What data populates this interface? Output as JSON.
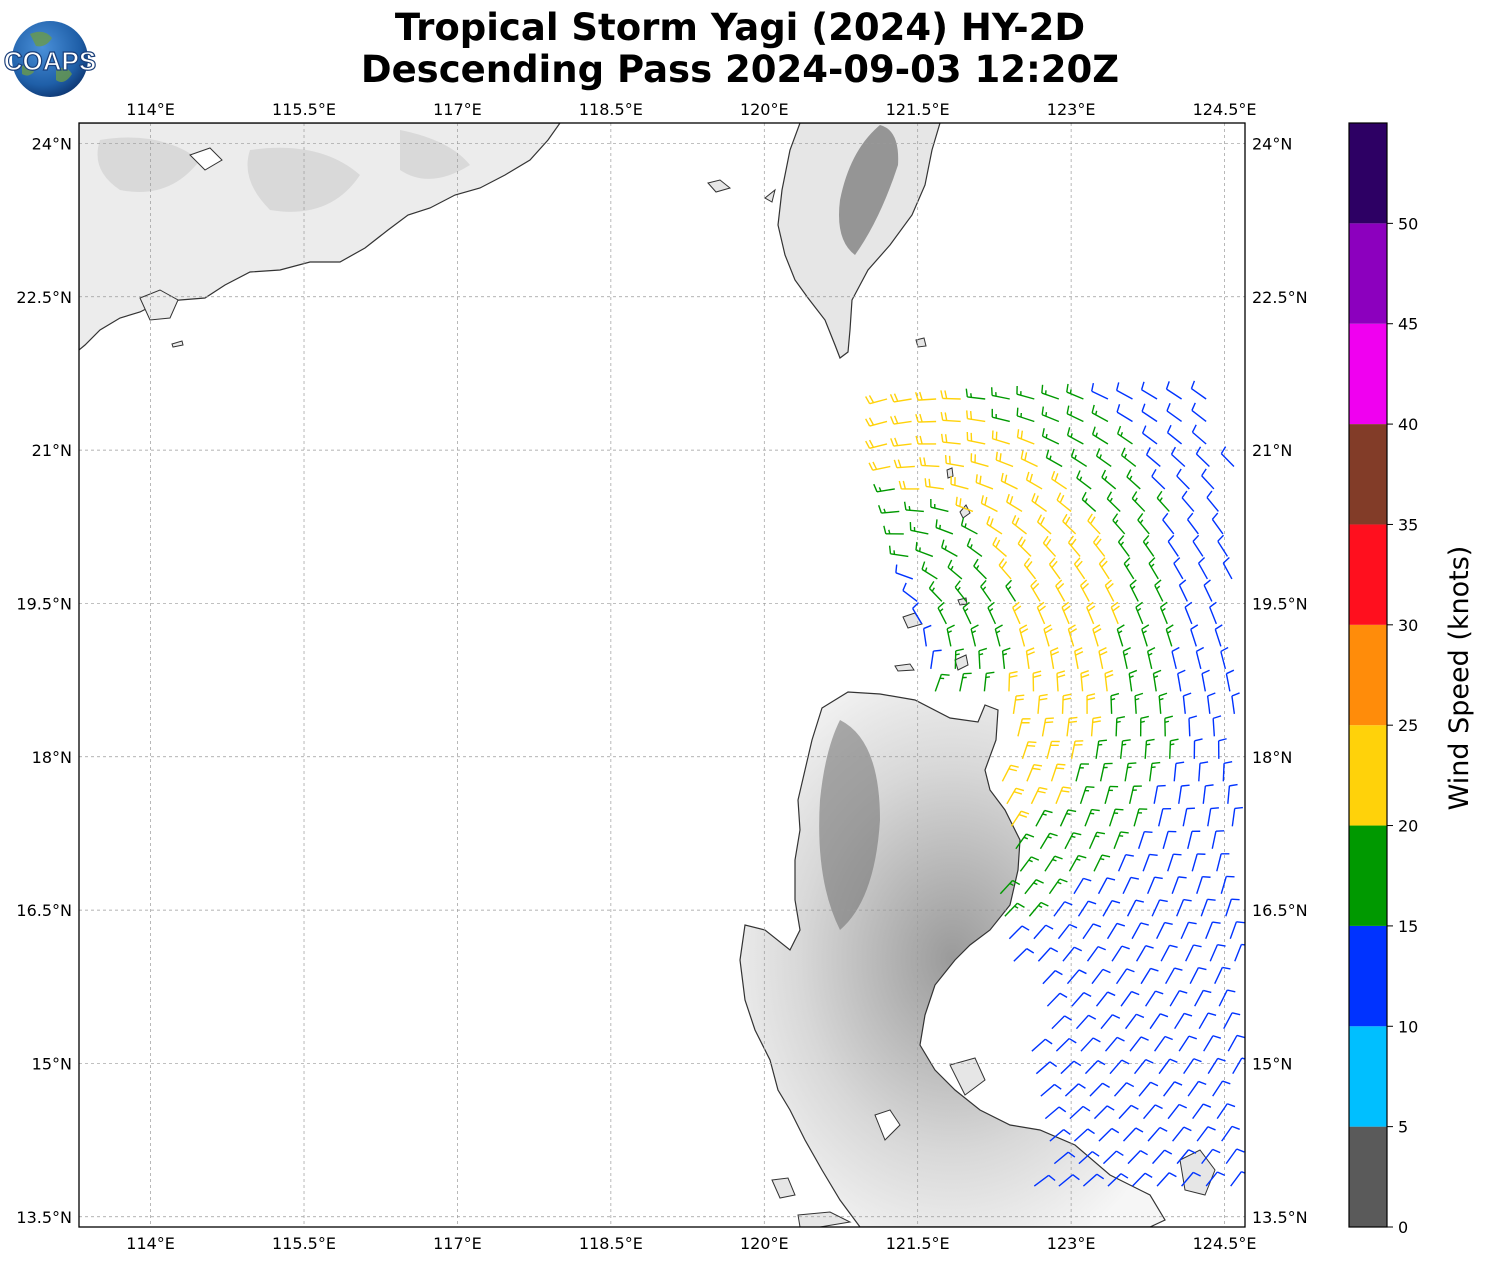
{
  "title": {
    "line1": "Tropical Storm Yagi (2024) HY-2D",
    "line2": "Descending Pass 2024-09-03 12:20Z"
  },
  "logo": {
    "text": "COAPS",
    "icon": "globe-logo-icon"
  },
  "map": {
    "lon_range": [
      113.3,
      124.7
    ],
    "lat_range": [
      13.4,
      24.2
    ],
    "lon_ticks": [
      {
        "value": 114,
        "label": "114°E"
      },
      {
        "value": 115.5,
        "label": "115.5°E"
      },
      {
        "value": 117,
        "label": "117°E"
      },
      {
        "value": 118.5,
        "label": "118.5°E"
      },
      {
        "value": 120,
        "label": "120°E"
      },
      {
        "value": 121.5,
        "label": "121.5°E"
      },
      {
        "value": 123,
        "label": "123°E"
      },
      {
        "value": 124.5,
        "label": "124.5°E"
      }
    ],
    "lat_ticks": [
      {
        "value": 24,
        "label": "24°N"
      },
      {
        "value": 22.5,
        "label": "22.5°N"
      },
      {
        "value": 21,
        "label": "21°N"
      },
      {
        "value": 19.5,
        "label": "19.5°N"
      },
      {
        "value": 18,
        "label": "18°N"
      },
      {
        "value": 16.5,
        "label": "16.5°N"
      },
      {
        "value": 15,
        "label": "15°N"
      },
      {
        "value": 13.5,
        "label": "13.5°N"
      }
    ],
    "grid": true,
    "swath": {
      "lon_min": 121.2,
      "lon_max": 124.6,
      "lat_min": 13.8,
      "lat_max": 21.5
    }
  },
  "colorbar": {
    "title": "Wind Speed (knots)",
    "bins": [
      {
        "from": 0,
        "to": 5,
        "color": "#5a5a5a"
      },
      {
        "from": 5,
        "to": 10,
        "color": "#00bfff"
      },
      {
        "from": 10,
        "to": 15,
        "color": "#0033ff"
      },
      {
        "from": 15,
        "to": 20,
        "color": "#009900"
      },
      {
        "from": 20,
        "to": 25,
        "color": "#ffd20a"
      },
      {
        "from": 25,
        "to": 30,
        "color": "#ff8c0a"
      },
      {
        "from": 30,
        "to": 35,
        "color": "#ff0f1e"
      },
      {
        "from": 35,
        "to": 40,
        "color": "#823c28"
      },
      {
        "from": 40,
        "to": 45,
        "color": "#f000f0"
      },
      {
        "from": 45,
        "to": 50,
        "color": "#8c00be"
      },
      {
        "from": 50,
        "to": 55,
        "color": "#2d0064"
      }
    ],
    "tick_labels": [
      "0",
      "5",
      "10",
      "15",
      "20",
      "25",
      "30",
      "35",
      "40",
      "45",
      "50"
    ]
  }
}
